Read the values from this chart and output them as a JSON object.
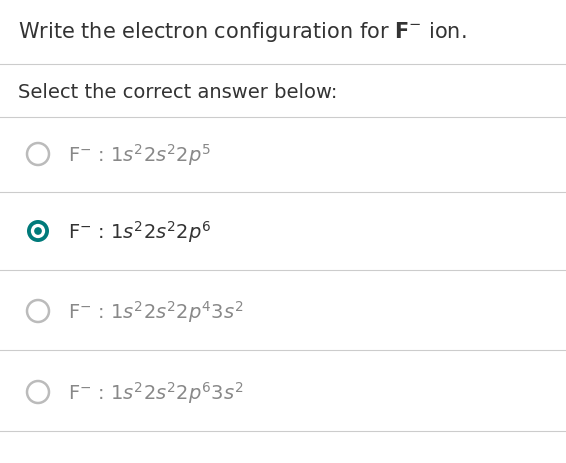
{
  "background_color": "#ffffff",
  "title_plain": "Write the electron configuration for ",
  "title_bold": "F",
  "title_sup": "−",
  "title_end": " ion.",
  "subtitle": "Select the correct answer below:",
  "options": [
    [
      "F",
      "−",
      " : 1s²2s²2p⁵"
    ],
    [
      "F",
      "−",
      " : 1s²2s²2p⁶"
    ],
    [
      "F",
      "−",
      " : 1s²2s²2p⁴ 3s²"
    ],
    [
      "F",
      "−",
      " : 1s²2s²2p⁶ 3s²"
    ]
  ],
  "correct_index": 1,
  "title_fontsize": 15,
  "subtitle_fontsize": 14,
  "option_fontsize": 14,
  "radio_color_selected": "#007A7A",
  "radio_color_unselected": "#bbbbbb",
  "text_color_dark": "#333333",
  "text_color_light": "#888888",
  "divider_color": "#cccccc",
  "fig_width": 5.66,
  "fig_height": 4.64,
  "dpi": 100
}
